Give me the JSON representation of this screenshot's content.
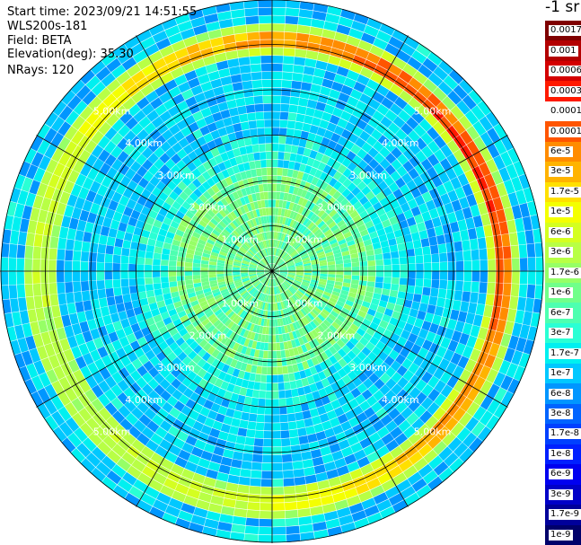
{
  "header": {
    "start_time": "Start time: 2023/09/21 14:51:55",
    "instrument": "WLS200s-181",
    "field": "Field: BETA",
    "elevation": "Elevation(deg): 35.30",
    "nrays": "NRays: 120"
  },
  "colorbar": {
    "unit": "-1 sr",
    "labels": [
      "0.0017",
      "0.001",
      "0.0006",
      "0.0003",
      "0.00017",
      "0.0001",
      "6e-5",
      "3e-5",
      "1.7e-5",
      "1e-5",
      "6e-6",
      "3e-6",
      "1.7e-6",
      "1e-6",
      "6e-7",
      "3e-7",
      "1.7e-7",
      "1e-7",
      "6e-8",
      "3e-8",
      "1.7e-8",
      "1e-8",
      "6e-9",
      "3e-9",
      "1.7e-9",
      "1e-9"
    ],
    "colors": [
      "#7f0000",
      "#b30000",
      "#d40000",
      "#ff1a00",
      "#ffffff",
      "#ff5500",
      "#ff8c00",
      "#ffb300",
      "#ffe000",
      "#f4ff00",
      "#d4ff20",
      "#b8ff45",
      "#96ff66",
      "#70ff8a",
      "#4dffb0",
      "#2affd4",
      "#00f0f0",
      "#00c8ff",
      "#0096ff",
      "#0064ff",
      "#0040ff",
      "#0020ff",
      "#0000f0",
      "#0000c8",
      "#00009a",
      "#00006a"
    ]
  },
  "chart_data": {
    "type": "heatmap",
    "projection": "polar-ppi",
    "rays": 120,
    "range_rings_km": [
      1,
      2,
      3,
      4,
      5
    ],
    "range_labels": [
      "1.00km",
      "2.00km",
      "3.00km",
      "4.00km",
      "5.00km"
    ],
    "max_range_km": 6,
    "spoke_count": 12,
    "features": {
      "near_field_level": "1e-6",
      "background_level": "1e-7",
      "ring_band_range_km": 5.1,
      "ring_band_peak_level": "3e-5"
    }
  }
}
